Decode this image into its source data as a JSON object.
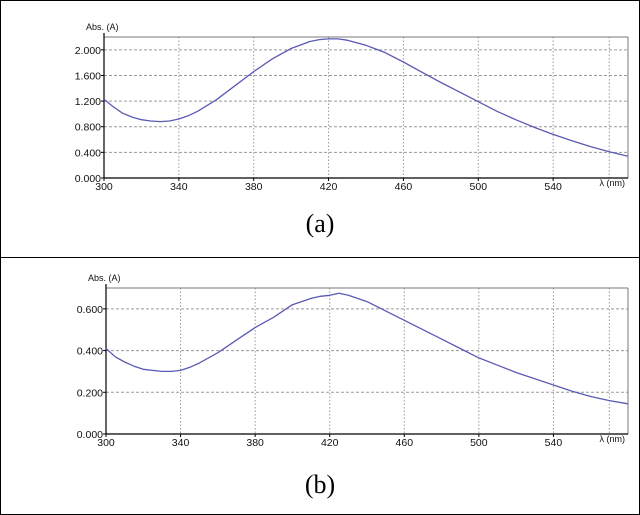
{
  "chart_data": [
    {
      "type": "line",
      "caption": "(a)",
      "ylabel": "Abs. (A)",
      "xlabel": "λ (nm)",
      "xlim": [
        300,
        580
      ],
      "ylim": [
        0.0,
        2.2
      ],
      "xticks": [
        300,
        340,
        380,
        420,
        460,
        500,
        540
      ],
      "xtick_labels": [
        "300",
        "340",
        "380",
        "420",
        "460",
        "500",
        "540"
      ],
      "yticks": [
        0.0,
        0.4,
        0.8,
        1.2,
        1.6,
        2.0
      ],
      "ytick_labels": [
        "0.000",
        "0.400",
        "0.800",
        "1.200",
        "1.600",
        "2.000"
      ],
      "grid": true,
      "series": [
        {
          "color": "#5a5ab4",
          "x": [
            300,
            305,
            310,
            315,
            320,
            325,
            330,
            335,
            340,
            345,
            350,
            360,
            370,
            380,
            390,
            400,
            410,
            415,
            420,
            425,
            430,
            440,
            450,
            460,
            470,
            480,
            490,
            500,
            510,
            520,
            530,
            540,
            550,
            560,
            570,
            580
          ],
          "y": [
            1.23,
            1.11,
            1.01,
            0.95,
            0.91,
            0.89,
            0.88,
            0.89,
            0.92,
            0.97,
            1.04,
            1.22,
            1.44,
            1.66,
            1.86,
            2.02,
            2.13,
            2.16,
            2.17,
            2.17,
            2.15,
            2.07,
            1.96,
            1.81,
            1.65,
            1.49,
            1.34,
            1.19,
            1.04,
            0.91,
            0.79,
            0.68,
            0.58,
            0.49,
            0.41,
            0.34
          ]
        }
      ]
    },
    {
      "type": "line",
      "caption": "(b)",
      "ylabel": "Abs. (A)",
      "xlabel": "λ (nm)",
      "xlim": [
        300,
        580
      ],
      "ylim": [
        0.0,
        0.7
      ],
      "xticks": [
        300,
        340,
        380,
        420,
        460,
        500,
        540
      ],
      "xtick_labels": [
        "300",
        "340",
        "380",
        "420",
        "460",
        "500",
        "540"
      ],
      "yticks": [
        0.0,
        0.2,
        0.4,
        0.6
      ],
      "ytick_labels": [
        "0.000",
        "0.200",
        "0.400",
        "0.600"
      ],
      "grid": true,
      "series": [
        {
          "color": "#5a5ab4",
          "x": [
            300,
            305,
            310,
            315,
            320,
            325,
            330,
            335,
            340,
            345,
            350,
            360,
            370,
            380,
            390,
            400,
            410,
            415,
            420,
            425,
            430,
            440,
            450,
            460,
            470,
            480,
            490,
            500,
            510,
            520,
            530,
            540,
            545,
            550,
            560,
            570,
            580
          ],
          "y": [
            0.41,
            0.37,
            0.345,
            0.325,
            0.31,
            0.305,
            0.3,
            0.3,
            0.305,
            0.32,
            0.34,
            0.39,
            0.45,
            0.51,
            0.56,
            0.62,
            0.65,
            0.66,
            0.665,
            0.675,
            0.665,
            0.635,
            0.59,
            0.545,
            0.5,
            0.455,
            0.41,
            0.365,
            0.33,
            0.295,
            0.265,
            0.235,
            0.22,
            0.205,
            0.18,
            0.16,
            0.145
          ]
        }
      ]
    }
  ]
}
